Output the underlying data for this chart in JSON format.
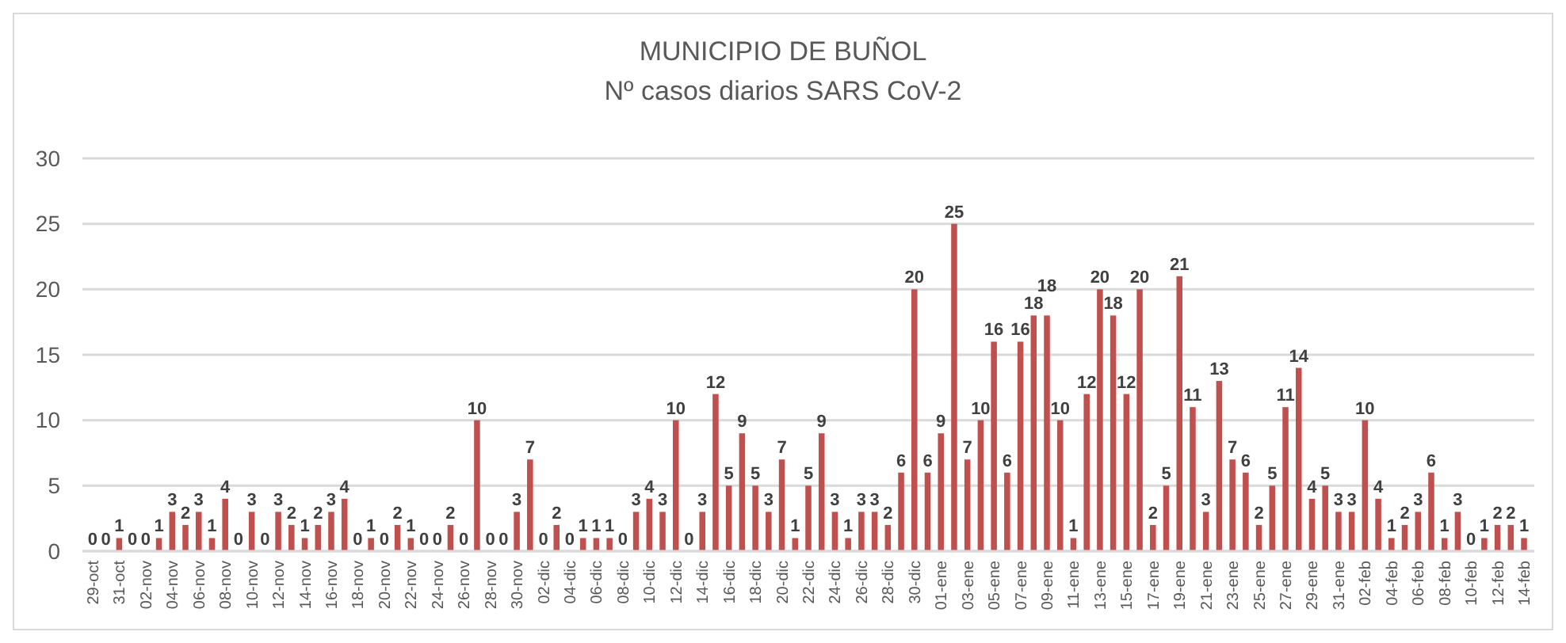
{
  "chart_data": {
    "type": "bar",
    "title": "MUNICIPIO DE BUÑOL",
    "subtitle": "Nº casos diarios SARS CoV-2",
    "categories": [
      "29-oct",
      null,
      "31-oct",
      null,
      "02-nov",
      null,
      "04-nov",
      null,
      "06-nov",
      null,
      "08-nov",
      null,
      "10-nov",
      null,
      "12-nov",
      null,
      "14-nov",
      null,
      "16-nov",
      null,
      "18-nov",
      null,
      "20-nov",
      null,
      "22-nov",
      null,
      "24-nov",
      null,
      "26-nov",
      null,
      "28-nov",
      null,
      "30-nov",
      null,
      "02-dic",
      null,
      "04-dic",
      null,
      "06-dic",
      null,
      "08-dic",
      null,
      "10-dic",
      null,
      "12-dic",
      null,
      "14-dic",
      null,
      "16-dic",
      null,
      "18-dic",
      null,
      "20-dic",
      null,
      "22-dic",
      null,
      "24-dic",
      null,
      "26-dic",
      null,
      "28-dic",
      null,
      "30-dic",
      null,
      "01-ene",
      null,
      "03-ene",
      null,
      "05-ene",
      null,
      "07-ene",
      null,
      "09-ene",
      null,
      "11-ene",
      null,
      "13-ene",
      null,
      "15-ene",
      null,
      "17-ene",
      null,
      "19-ene",
      null,
      "21-ene",
      null,
      "23-ene",
      null,
      "25-ene",
      null,
      "27-ene",
      null,
      "29-ene",
      null,
      "31-ene",
      null,
      "02-feb",
      null,
      "04-feb",
      null,
      "06-feb",
      null,
      "08-feb",
      null,
      "10-feb",
      null,
      "12-feb",
      null,
      "14-feb"
    ],
    "values": [
      0,
      0,
      1,
      0,
      0,
      1,
      3,
      2,
      3,
      1,
      4,
      0,
      3,
      0,
      3,
      2,
      1,
      2,
      3,
      4,
      0,
      1,
      0,
      2,
      1,
      0,
      0,
      2,
      0,
      10,
      0,
      0,
      3,
      7,
      0,
      2,
      0,
      1,
      1,
      1,
      0,
      3,
      4,
      3,
      10,
      0,
      3,
      12,
      5,
      9,
      5,
      3,
      7,
      1,
      5,
      9,
      3,
      1,
      3,
      3,
      2,
      6,
      20,
      6,
      9,
      25,
      7,
      10,
      16,
      6,
      16,
      18,
      18,
      10,
      1,
      12,
      20,
      18,
      12,
      20,
      2,
      5,
      21,
      11,
      3,
      13,
      7,
      6,
      2,
      5,
      11,
      14,
      4,
      5,
      3,
      3,
      10,
      4,
      1,
      2,
      3,
      6,
      1,
      3,
      0,
      1,
      2,
      2,
      1
    ],
    "color": "#c0504d",
    "ylim": [
      0,
      30
    ],
    "yticks": [
      0,
      5,
      10,
      15,
      20,
      25,
      30
    ],
    "grid": "y",
    "data_labels": true
  }
}
